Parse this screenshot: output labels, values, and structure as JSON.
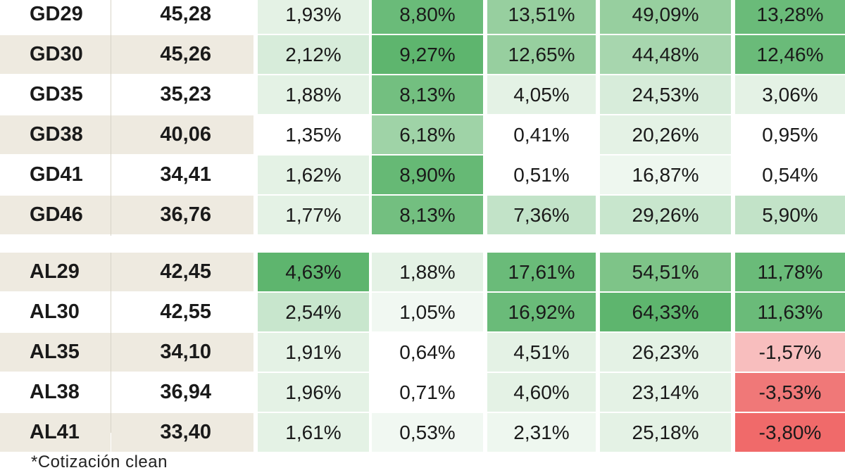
{
  "groups": [
    {
      "rows": [
        {
          "ticker": "GD29",
          "price": "45,28",
          "values": [
            "1,93%",
            "8,80%",
            "13,51%",
            "49,09%",
            "13,28%"
          ]
        },
        {
          "ticker": "GD30",
          "price": "45,26",
          "values": [
            "2,12%",
            "9,27%",
            "12,65%",
            "44,48%",
            "12,46%"
          ]
        },
        {
          "ticker": "GD35",
          "price": "35,23",
          "values": [
            "1,88%",
            "8,13%",
            "4,05%",
            "24,53%",
            "3,06%"
          ]
        },
        {
          "ticker": "GD38",
          "price": "40,06",
          "values": [
            "1,35%",
            "6,18%",
            "0,41%",
            "20,26%",
            "0,95%"
          ]
        },
        {
          "ticker": "GD41",
          "price": "34,41",
          "values": [
            "1,62%",
            "8,90%",
            "0,51%",
            "16,87%",
            "0,54%"
          ]
        },
        {
          "ticker": "GD46",
          "price": "36,76",
          "values": [
            "1,77%",
            "8,13%",
            "7,36%",
            "29,26%",
            "5,90%"
          ]
        }
      ]
    },
    {
      "rows": [
        {
          "ticker": "AL29",
          "price": "42,45",
          "values": [
            "4,63%",
            "1,88%",
            "17,61%",
            "54,51%",
            "11,78%"
          ]
        },
        {
          "ticker": "AL30",
          "price": "42,55",
          "values": [
            "2,54%",
            "1,05%",
            "16,92%",
            "64,33%",
            "11,63%"
          ]
        },
        {
          "ticker": "AL35",
          "price": "34,10",
          "values": [
            "1,91%",
            "0,64%",
            "4,51%",
            "26,23%",
            "-1,57%"
          ]
        },
        {
          "ticker": "AL38",
          "price": "36,94",
          "values": [
            "1,96%",
            "0,71%",
            "4,60%",
            "23,14%",
            "-3,53%"
          ]
        },
        {
          "ticker": "AL41",
          "price": "33,40",
          "values": [
            "1,61%",
            "0,53%",
            "2,31%",
            "25,18%",
            "-3,80%"
          ]
        }
      ]
    }
  ],
  "colors": [
    [
      "#e4f2e5",
      "#6abb79",
      "#97cf9f",
      "#97cf9f",
      "#6abb79"
    ],
    [
      "#d7ecda",
      "#5eb56e",
      "#97cf9f",
      "#a7d6ae",
      "#6abb79"
    ],
    [
      "#e4f2e5",
      "#73bf80",
      "#e4f2e5",
      "#d7ecda",
      "#e4f2e5"
    ],
    [
      "#ffffff",
      "#9fd3a7",
      "#ffffff",
      "#e4f2e5",
      "#ffffff"
    ],
    [
      "#e4f2e5",
      "#66b975",
      "#ffffff",
      "#eef7ef",
      "#ffffff"
    ],
    [
      "#e4f2e5",
      "#73bf80",
      "#c2e3c8",
      "#c8e6cd",
      "#c2e3c8"
    ],
    [
      "#5eb56e",
      "#e4f2e5",
      "#6abb79",
      "#7ec488",
      "#6abb79"
    ],
    [
      "#c8e6cd",
      "#f1f8f2",
      "#6abb79",
      "#5eb56e",
      "#6abb79"
    ],
    [
      "#e4f2e5",
      "#ffffff",
      "#e4f2e5",
      "#e4f2e5",
      "#f8bebe"
    ],
    [
      "#e4f2e5",
      "#ffffff",
      "#e4f2e5",
      "#e4f2e5",
      "#f07878"
    ],
    [
      "#e4f2e5",
      "#f1f8f2",
      "#eef7ef",
      "#e4f2e5",
      "#f06a6a"
    ]
  ],
  "footnote": "*Cotización clean"
}
